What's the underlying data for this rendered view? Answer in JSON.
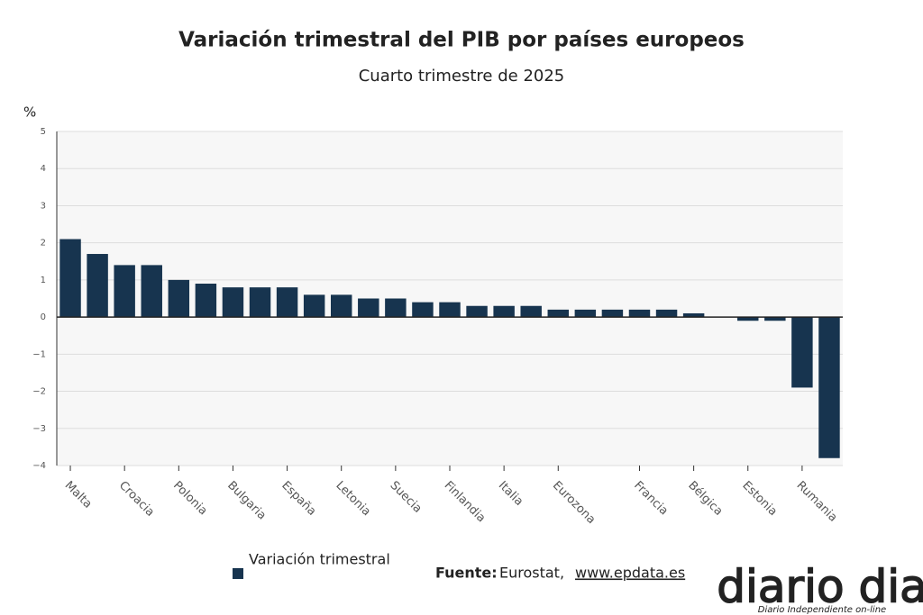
{
  "chart_data": {
    "type": "bar",
    "title": "Variación trimestral del PIB por países europeos",
    "subtitle": "Cuarto trimestre de 2025",
    "y_label": "%",
    "categories": [
      "Malta",
      null,
      "Croacia",
      null,
      "Polonia",
      null,
      "Bulgaria",
      null,
      "España",
      null,
      "Letonia",
      null,
      "Suecia",
      null,
      "Finlandia",
      null,
      "Italia",
      null,
      "Eurozona",
      null,
      null,
      "Francia",
      null,
      "Bélgica",
      null,
      "Estonia",
      null,
      "Rumania",
      null
    ],
    "series": [
      {
        "name": "Variación trimestral",
        "color": "#17344f",
        "values": [
          2.1,
          1.7,
          1.4,
          1.4,
          1.0,
          0.9,
          0.8,
          0.8,
          0.8,
          0.6,
          0.6,
          0.5,
          0.5,
          0.4,
          0.4,
          0.3,
          0.3,
          0.3,
          0.2,
          0.2,
          0.2,
          0.2,
          0.2,
          0.1,
          0,
          -0.1,
          -0.1,
          -1.9,
          -3.8
        ]
      }
    ],
    "ylim": [
      -4,
      5
    ],
    "yticks": [
      {
        "value": -4,
        "label": "−4"
      },
      {
        "value": -3,
        "label": "−3"
      },
      {
        "value": -2,
        "label": "−2"
      },
      {
        "value": -1,
        "label": "−1"
      },
      0,
      1,
      2,
      3,
      4,
      5
    ],
    "grid": true,
    "source_label": "Fuente:",
    "source": "Eurostat,",
    "source_url": "www.epdata.es",
    "logo": "diario dia",
    "logo_tagline": "Diario Independiente on-line"
  }
}
